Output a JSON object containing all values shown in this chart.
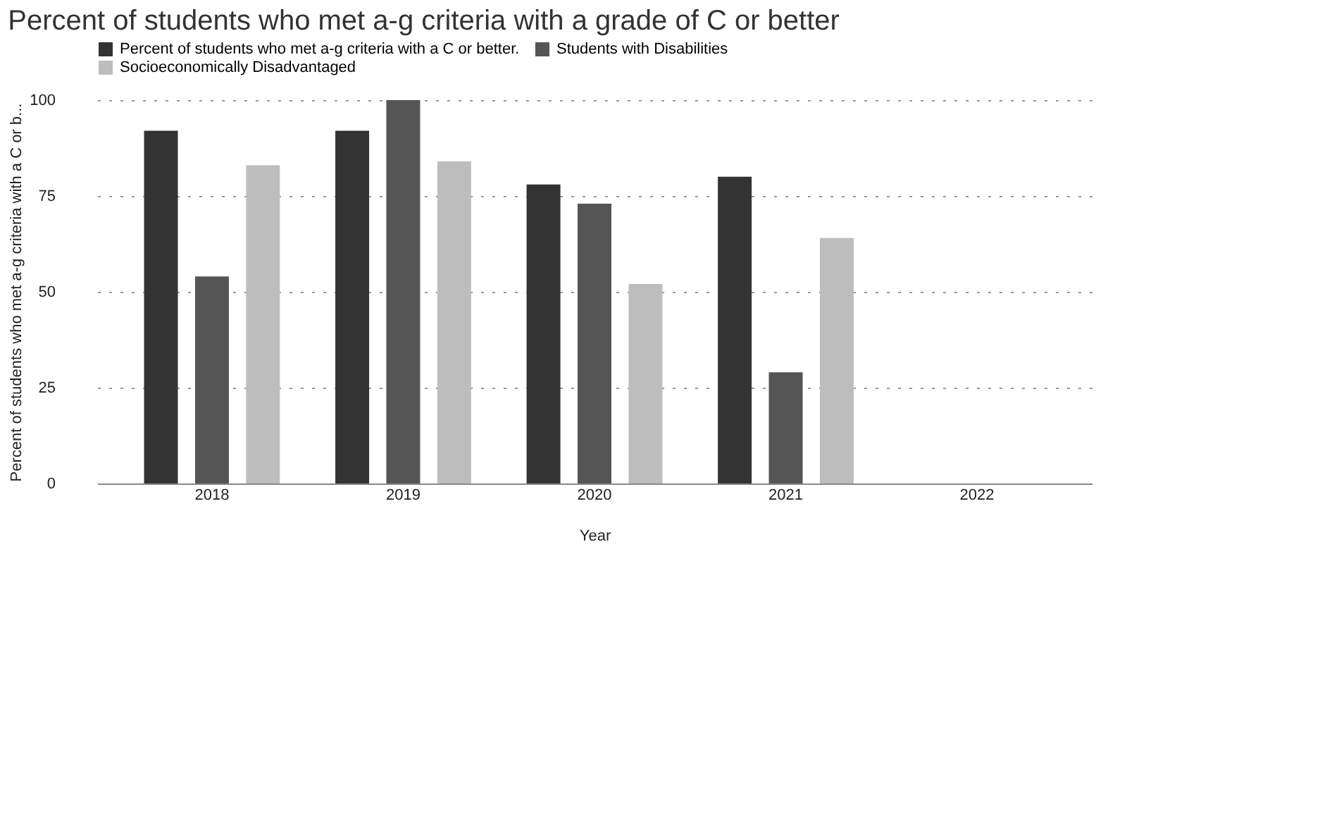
{
  "chart_data": {
    "type": "bar",
    "title": "Percent of students who met a-g criteria with a grade of C or better",
    "xlabel": "Year",
    "ylabel": "Percent of students who met a-g criteria with a C or b...",
    "categories": [
      "2018",
      "2019",
      "2020",
      "2021",
      "2022"
    ],
    "series": [
      {
        "name": "Percent of students who met a-g criteria with a C or better.",
        "color": "#333333",
        "values": [
          92,
          92,
          78,
          80,
          null
        ]
      },
      {
        "name": "Students with Disabilities",
        "color": "#555555",
        "values": [
          54,
          100,
          73,
          29,
          null
        ]
      },
      {
        "name": "Socioeconomically Disadvantaged",
        "color": "#bdbdbd",
        "values": [
          83,
          84,
          52,
          64,
          null
        ]
      }
    ],
    "ylim": [
      0,
      100
    ],
    "yticks": [
      0,
      25,
      50,
      75,
      100
    ],
    "grid": "y",
    "legend": "top"
  }
}
